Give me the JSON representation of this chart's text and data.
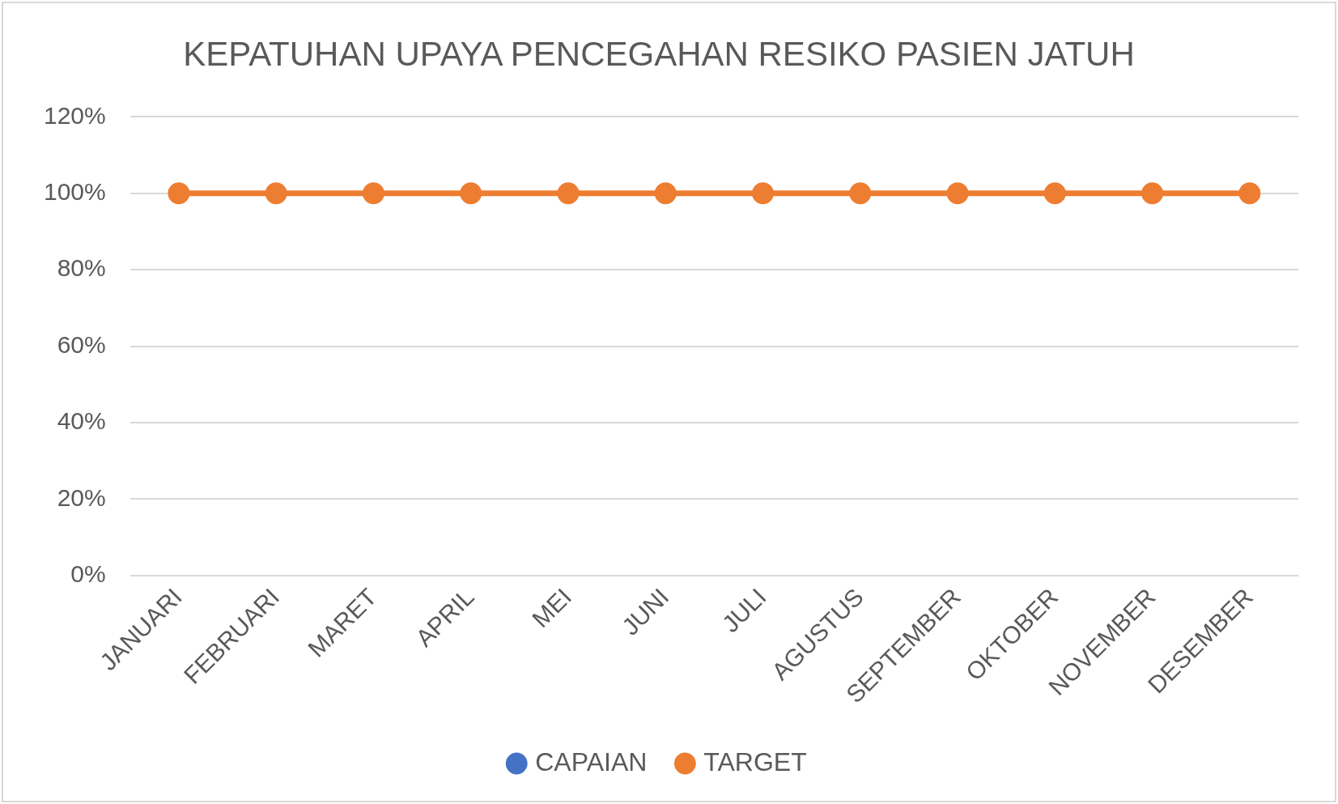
{
  "chart_data": {
    "type": "line",
    "title": "KEPATUHAN UPAYA PENCEGAHAN RESIKO PASIEN JATUH",
    "categories": [
      "JANUARI",
      "FEBRUARI",
      "MARET",
      "APRIL",
      "MEI",
      "JUNI",
      "JULI",
      "AGUSTUS",
      "SEPTEMBER",
      "OKTOBER",
      "NOVEMBER",
      "DESEMBER"
    ],
    "series": [
      {
        "name": "CAPAIAN",
        "color": "#4472c4",
        "values": [
          null,
          null,
          null,
          null,
          null,
          null,
          null,
          null,
          null,
          null,
          null,
          null
        ]
      },
      {
        "name": "TARGET",
        "color": "#ed7d31",
        "values": [
          100,
          100,
          100,
          100,
          100,
          100,
          100,
          100,
          100,
          100,
          100,
          100
        ]
      }
    ],
    "ylim": [
      0,
      120
    ],
    "yticks": [
      {
        "value": 0,
        "label": "0%"
      },
      {
        "value": 20,
        "label": "20%"
      },
      {
        "value": 40,
        "label": "40%"
      },
      {
        "value": 60,
        "label": "60%"
      },
      {
        "value": 80,
        "label": "80%"
      },
      {
        "value": 100,
        "label": "100%"
      },
      {
        "value": 120,
        "label": "120%"
      }
    ],
    "grid": "y",
    "legend": "bottom",
    "marker": "circle"
  }
}
